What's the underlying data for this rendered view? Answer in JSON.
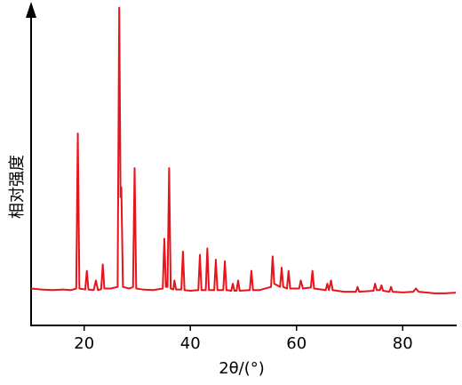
{
  "chart_data": {
    "type": "line",
    "x_label": "2θ/(°)",
    "y_label": "相对强度",
    "xlim": [
      10,
      90
    ],
    "xticks": [
      20,
      40,
      60,
      80
    ],
    "ylim": [
      0,
      100
    ],
    "series": [
      {
        "color": "#e8141c",
        "x": [
          10,
          12,
          14,
          16,
          17.5,
          18.5,
          18.8,
          19.1,
          20.2,
          20.5,
          20.8,
          21.8,
          22.2,
          22.6,
          23.2,
          23.5,
          23.8,
          25,
          26.3,
          26.6,
          26.85,
          27.0,
          27.3,
          28.5,
          29.2,
          29.5,
          29.8,
          31,
          33,
          34.8,
          35.1,
          35.4,
          35.7,
          36.0,
          36.3,
          36.8,
          37,
          37.3,
          38.3,
          38.6,
          38.9,
          40,
          41.5,
          41.8,
          42.1,
          42.9,
          43.2,
          43.5,
          44.5,
          44.8,
          45.1,
          46.2,
          46.5,
          46.8,
          47.7,
          48,
          48.3,
          48.7,
          49,
          49.3,
          51.2,
          51.5,
          51.8,
          53,
          55.2,
          55.5,
          55.8,
          56.9,
          57.2,
          57.5,
          58.2,
          58.5,
          58.8,
          60.5,
          60.8,
          61.2,
          62.7,
          63,
          63.3,
          65.5,
          65.8,
          66.1,
          66.5,
          66.8,
          69,
          71.2,
          71.5,
          71.8,
          74.5,
          74.8,
          75.1,
          75.7,
          76,
          76.3,
          77.5,
          77.8,
          78.1,
          80,
          82,
          82.5,
          83,
          86,
          88,
          90
        ],
        "values": [
          11.5,
          11.2,
          11.0,
          11.2,
          11.0,
          11.5,
          59.8,
          11.5,
          11.2,
          17,
          11.2,
          11,
          14,
          11,
          11.3,
          19,
          11.5,
          11.5,
          12,
          99,
          40,
          43,
          12,
          11.5,
          12,
          49,
          11.5,
          11.2,
          11,
          11.5,
          27,
          12,
          12,
          49,
          11.5,
          11.2,
          14,
          11.2,
          11.2,
          23,
          11,
          10.8,
          11,
          22,
          11,
          11,
          24,
          11,
          11,
          20.5,
          11,
          11,
          20,
          11,
          10.8,
          13,
          10.8,
          10.8,
          14,
          10.8,
          11,
          17,
          11,
          11,
          12,
          21.5,
          13,
          12,
          18,
          12,
          11.5,
          17,
          11.5,
          11.5,
          14,
          11.5,
          11.8,
          17,
          11.5,
          11,
          13,
          11,
          14,
          11,
          10.5,
          10.5,
          12,
          10.5,
          10.8,
          13,
          11,
          11,
          12.5,
          10.8,
          10.5,
          12,
          10.5,
          10.3,
          10.5,
          11.5,
          10.5,
          10,
          10,
          10.2
        ]
      }
    ]
  }
}
